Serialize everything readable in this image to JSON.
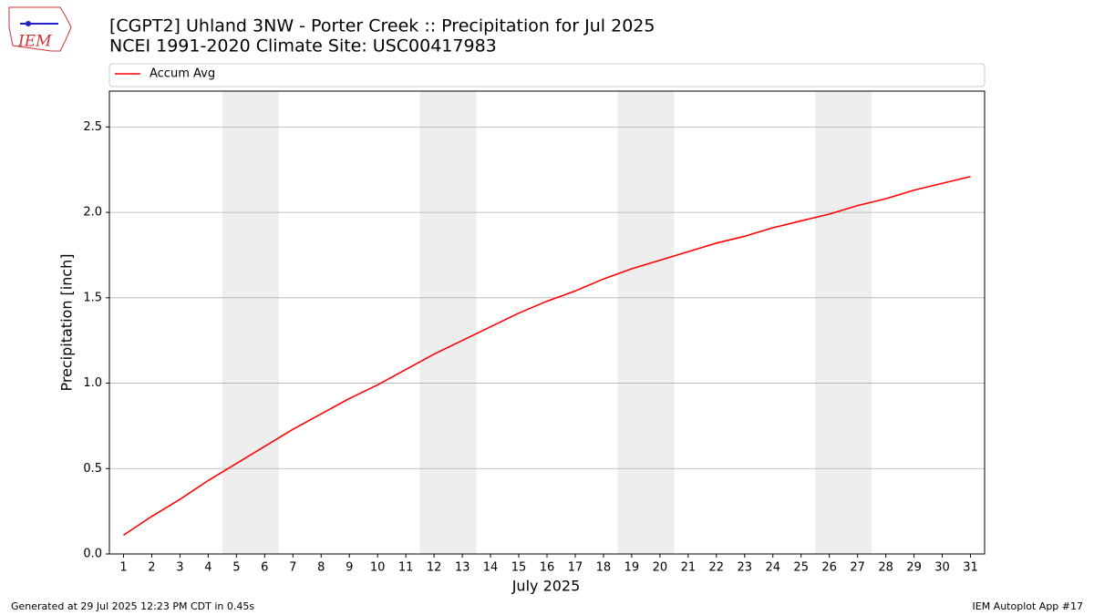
{
  "logo_text": "IEM",
  "footer_left": "Generated at 29 Jul 2025 12:23 PM CDT in 0.45s",
  "footer_right": "IEM Autoplot App #17",
  "chart_data": {
    "type": "line",
    "title": "[CGPT2] Uhland 3NW - Porter Creek :: Precipitation for Jul 2025",
    "subtitle": "NCEI 1991-2020 Climate Site: USC00417983",
    "x_label": "July 2025",
    "y_label": "Precipitation [inch]",
    "x": [
      1,
      2,
      3,
      4,
      5,
      6,
      7,
      8,
      9,
      10,
      11,
      12,
      13,
      14,
      15,
      16,
      17,
      18,
      19,
      20,
      21,
      22,
      23,
      24,
      25,
      26,
      27,
      28,
      29,
      30,
      31
    ],
    "series": [
      {
        "name": "Accum Avg",
        "color": "#ff0000",
        "values": [
          0.11,
          0.22,
          0.32,
          0.43,
          0.53,
          0.63,
          0.73,
          0.82,
          0.91,
          0.99,
          1.08,
          1.17,
          1.25,
          1.33,
          1.41,
          1.48,
          1.54,
          1.61,
          1.67,
          1.72,
          1.77,
          1.82,
          1.86,
          1.91,
          1.95,
          1.99,
          2.04,
          2.08,
          2.13,
          2.17,
          2.21
        ]
      }
    ],
    "xlim": [
      0.5,
      31.5
    ],
    "xticks": [
      1,
      2,
      3,
      4,
      5,
      6,
      7,
      8,
      9,
      10,
      11,
      12,
      13,
      14,
      15,
      16,
      17,
      18,
      19,
      20,
      21,
      22,
      23,
      24,
      25,
      26,
      27,
      28,
      29,
      30,
      31
    ],
    "ylim": [
      0,
      2.71
    ],
    "yticks": [
      {
        "value": 0,
        "label": "0.0"
      },
      {
        "value": 0.5,
        "label": "0.5"
      },
      {
        "value": 1,
        "label": "1.0"
      },
      {
        "value": 1.5,
        "label": "1.5"
      },
      {
        "value": 2,
        "label": "2.0"
      },
      {
        "value": 2.5,
        "label": "2.5"
      }
    ],
    "grid": true,
    "shaded_x": [
      [
        4.5,
        6.5
      ],
      [
        11.5,
        13.5
      ],
      [
        18.5,
        20.5
      ],
      [
        25.5,
        27.5
      ]
    ],
    "shade_color": "#eeeeee",
    "legend": "top"
  }
}
